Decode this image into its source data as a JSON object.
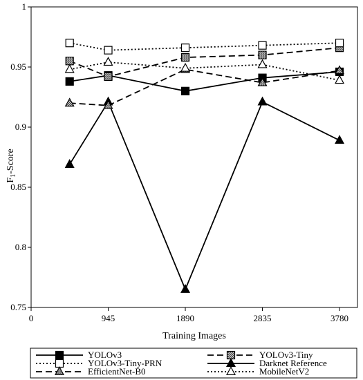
{
  "chart_data": {
    "type": "line",
    "title": "",
    "xlabel": "Training Images",
    "ylabel_main": "F",
    "ylabel_sub": "1",
    "ylabel_suffix": "-Score",
    "xlim": [
      0,
      4000
    ],
    "ylim": [
      0.75,
      1.0
    ],
    "x_ticks": [
      0,
      945,
      1890,
      2835,
      3780
    ],
    "y_ticks": [
      0.75,
      0.8,
      0.85,
      0.9,
      0.95,
      1.0
    ],
    "x_tick_labels": [
      "0",
      "945",
      "1890",
      "2835",
      "3780"
    ],
    "y_tick_labels": [
      "0.75",
      "0.8",
      "0.85",
      "0.9",
      "0.95",
      "1"
    ],
    "x": [
      472,
      945,
      1890,
      2835,
      3780
    ],
    "grid": false,
    "legend_position": "bottom",
    "series": [
      {
        "name": "YOLOv3",
        "values": [
          0.938,
          0.943,
          0.93,
          0.941,
          0.946
        ],
        "dash": "solid",
        "marker": "square-filled"
      },
      {
        "name": "YOLOv3-Tiny",
        "values": [
          0.955,
          0.942,
          0.958,
          0.96,
          0.966
        ],
        "dash": "dashed",
        "marker": "square-hatched"
      },
      {
        "name": "YOLOv3-Tiny-PRN",
        "values": [
          0.97,
          0.964,
          0.966,
          0.968,
          0.97
        ],
        "dash": "dotted",
        "marker": "square-open"
      },
      {
        "name": "Darknet Reference",
        "values": [
          0.869,
          0.921,
          0.765,
          0.921,
          0.889
        ],
        "dash": "solid",
        "marker": "triangle-filled"
      },
      {
        "name": "EfficientNet-B0",
        "values": [
          0.92,
          0.918,
          0.948,
          0.937,
          0.947
        ],
        "dash": "dashed",
        "marker": "triangle-hatched"
      },
      {
        "name": "MobileNetV2",
        "values": [
          0.948,
          0.954,
          0.949,
          0.952,
          0.939
        ],
        "dash": "dotted",
        "marker": "triangle-open"
      }
    ]
  }
}
